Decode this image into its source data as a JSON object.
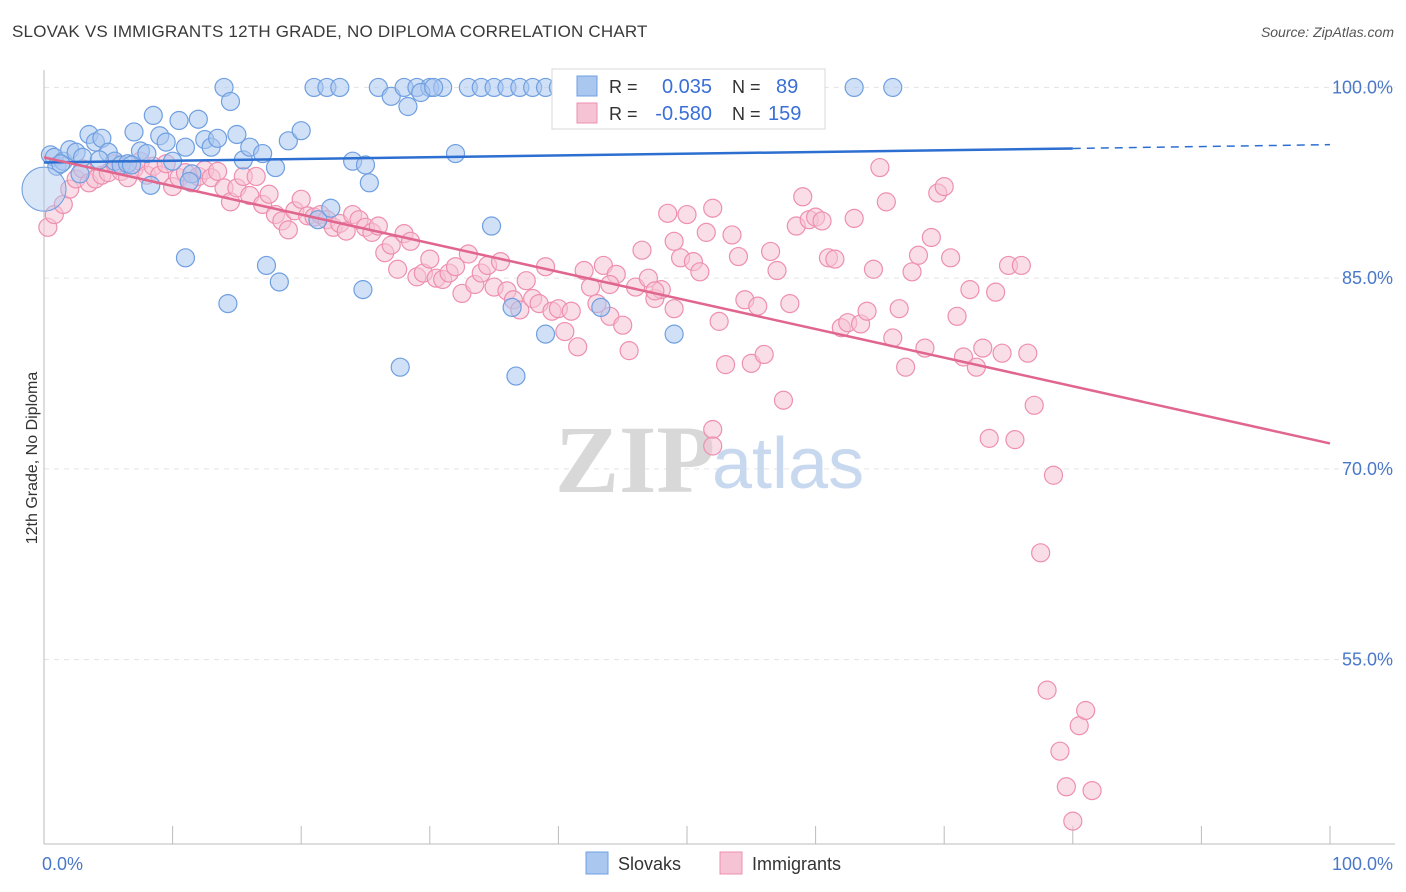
{
  "title": "SLOVAK VS IMMIGRANTS 12TH GRADE, NO DIPLOMA CORRELATION CHART",
  "source": "Source: ZipAtlas.com",
  "watermark": {
    "zip": "ZIP",
    "atlas": "atlas"
  },
  "colors": {
    "slovaks": "#6f9fe0",
    "slovaks_fill": "#aac7f0",
    "slovaks_line": "#2d6fd0",
    "immigrants": "#ee8fb0",
    "immigrants_fill": "#f6c3d4",
    "immigrants_line": "#e0668e",
    "axis_label": "#4a78c8",
    "grid": "#e3e3e3"
  },
  "legend": {
    "r_label": "R =",
    "n_label": "N =",
    "rows": [
      {
        "r": "0.035",
        "n": "89"
      },
      {
        "r": "-0.580",
        "n": "159"
      }
    ]
  },
  "chart_data": {
    "type": "scatter",
    "title": "SLOVAK VS IMMIGRANTS 12TH GRADE, NO DIPLOMA CORRELATION CHART",
    "xlabel": "",
    "ylabel": "12th Grade, No Diploma",
    "xlim": [
      0,
      100
    ],
    "ylim": [
      40.5,
      102
    ],
    "x_tick_labels": [
      "0.0%",
      "100.0%"
    ],
    "y_ticks": [
      100,
      85,
      70,
      55
    ],
    "y_tick_labels": [
      "100.0%",
      "85.0%",
      "70.0%",
      "55.0%"
    ],
    "grid": true,
    "legend_position": "top",
    "series": [
      {
        "name": "Slovaks",
        "trend": {
          "x": [
            0,
            80
          ],
          "y": [
            94.1,
            95.2
          ],
          "dashed_to": [
            100,
            95.5
          ]
        },
        "points": [
          [
            0.5,
            94.7
          ],
          [
            0.8,
            94.5
          ],
          [
            1.0,
            93.8
          ],
          [
            1.5,
            94.2
          ],
          [
            2.0,
            95.1
          ],
          [
            2.5,
            94.9
          ],
          [
            3.0,
            94.5
          ],
          [
            3.5,
            96.3
          ],
          [
            4.0,
            95.7
          ],
          [
            4.5,
            96.0
          ],
          [
            5.0,
            94.9
          ],
          [
            5.5,
            94.2
          ],
          [
            6.0,
            93.9
          ],
          [
            6.5,
            94.0
          ],
          [
            7.0,
            96.5
          ],
          [
            7.5,
            95.0
          ],
          [
            8.0,
            94.8
          ],
          [
            8.5,
            97.8
          ],
          [
            9.0,
            96.2
          ],
          [
            9.5,
            95.7
          ],
          [
            10.0,
            94.2
          ],
          [
            10.5,
            97.4
          ],
          [
            11.0,
            95.3
          ],
          [
            11.5,
            93.2
          ],
          [
            12.0,
            97.5
          ],
          [
            12.5,
            95.9
          ],
          [
            13.0,
            95.3
          ],
          [
            13.5,
            96.0
          ],
          [
            14.0,
            100
          ],
          [
            14.5,
            98.9
          ],
          [
            15.0,
            96.3
          ],
          [
            15.5,
            94.3
          ],
          [
            16.0,
            95.3
          ],
          [
            17.0,
            94.8
          ],
          [
            18.0,
            93.7
          ],
          [
            19.0,
            95.8
          ],
          [
            20.0,
            96.6
          ],
          [
            21.0,
            100
          ],
          [
            22.0,
            100
          ],
          [
            23.0,
            100
          ],
          [
            24.0,
            94.2
          ],
          [
            25.0,
            93.9
          ],
          [
            26.0,
            100
          ],
          [
            27.0,
            99.3
          ],
          [
            28.0,
            100
          ],
          [
            29.0,
            100
          ],
          [
            30.0,
            100
          ],
          [
            31.0,
            100
          ],
          [
            32.0,
            94.8
          ],
          [
            33.0,
            100
          ],
          [
            34.0,
            100
          ],
          [
            35.0,
            100
          ],
          [
            36.0,
            100
          ],
          [
            37.0,
            100
          ],
          [
            38.0,
            100
          ],
          [
            39.0,
            100
          ],
          [
            40.0,
            100
          ],
          [
            41.0,
            100
          ],
          [
            42.0,
            100
          ],
          [
            43.0,
            100
          ],
          [
            48.0,
            100
          ],
          [
            50.0,
            100
          ],
          [
            60.0,
            100
          ],
          [
            63.0,
            100
          ],
          [
            66.0,
            100
          ],
          [
            1.3,
            94.0
          ],
          [
            2.8,
            93.2
          ],
          [
            4.3,
            94.3
          ],
          [
            6.8,
            93.9
          ],
          [
            8.3,
            92.3
          ],
          [
            11.3,
            92.6
          ],
          [
            17.3,
            86.0
          ],
          [
            18.3,
            84.7
          ],
          [
            14.3,
            83.0
          ],
          [
            11.0,
            86.6
          ],
          [
            21.3,
            89.6
          ],
          [
            22.3,
            90.5
          ],
          [
            25.3,
            92.5
          ],
          [
            24.8,
            84.1
          ],
          [
            27.7,
            78.0
          ],
          [
            28.3,
            98.5
          ],
          [
            29.3,
            99.6
          ],
          [
            30.3,
            100
          ],
          [
            34.8,
            89.1
          ],
          [
            36.4,
            82.7
          ],
          [
            39.0,
            80.6
          ],
          [
            43.3,
            82.7
          ],
          [
            49.0,
            80.6
          ],
          [
            36.7,
            77.3
          ]
        ]
      },
      {
        "name": "Immigrants",
        "trend": {
          "x": [
            0,
            100
          ],
          "y": [
            94.5,
            72.0
          ]
        },
        "points": [
          [
            0.3,
            89.0
          ],
          [
            0.8,
            90.0
          ],
          [
            1.5,
            90.8
          ],
          [
            2.0,
            92.0
          ],
          [
            2.5,
            92.8
          ],
          [
            3.0,
            93.6
          ],
          [
            3.5,
            92.5
          ],
          [
            4.0,
            92.8
          ],
          [
            4.5,
            93.1
          ],
          [
            5.0,
            93.3
          ],
          [
            5.5,
            94.0
          ],
          [
            6.0,
            93.4
          ],
          [
            6.5,
            92.9
          ],
          [
            7.0,
            93.6
          ],
          [
            7.5,
            94.2
          ],
          [
            8.0,
            93.1
          ],
          [
            8.5,
            93.8
          ],
          [
            9.0,
            93.1
          ],
          [
            9.5,
            94.0
          ],
          [
            10.0,
            92.2
          ],
          [
            10.5,
            92.9
          ],
          [
            11.0,
            93.3
          ],
          [
            11.5,
            92.5
          ],
          [
            12.0,
            93.0
          ],
          [
            12.5,
            93.5
          ],
          [
            13.0,
            92.9
          ],
          [
            13.5,
            93.4
          ],
          [
            14.0,
            92.1
          ],
          [
            14.5,
            91.0
          ],
          [
            15.0,
            92.1
          ],
          [
            15.5,
            93.0
          ],
          [
            16.0,
            91.5
          ],
          [
            16.5,
            93.0
          ],
          [
            17.0,
            90.8
          ],
          [
            17.5,
            91.6
          ],
          [
            18.0,
            90.0
          ],
          [
            18.5,
            89.5
          ],
          [
            19.0,
            88.8
          ],
          [
            19.5,
            90.3
          ],
          [
            20.0,
            91.2
          ],
          [
            20.5,
            89.9
          ],
          [
            21.0,
            89.8
          ],
          [
            21.5,
            90.0
          ],
          [
            22.0,
            89.6
          ],
          [
            22.5,
            89.0
          ],
          [
            23.0,
            89.3
          ],
          [
            23.5,
            88.7
          ],
          [
            24.0,
            90.0
          ],
          [
            24.5,
            89.6
          ],
          [
            25.0,
            89.0
          ],
          [
            25.5,
            88.6
          ],
          [
            26.0,
            89.1
          ],
          [
            26.5,
            87.0
          ],
          [
            27.0,
            87.6
          ],
          [
            27.5,
            85.7
          ],
          [
            28.0,
            88.5
          ],
          [
            28.5,
            87.9
          ],
          [
            29.0,
            85.1
          ],
          [
            29.5,
            85.4
          ],
          [
            30.0,
            86.5
          ],
          [
            30.5,
            85.0
          ],
          [
            31.0,
            84.9
          ],
          [
            31.5,
            85.4
          ],
          [
            32.0,
            85.9
          ],
          [
            32.5,
            83.8
          ],
          [
            33.0,
            86.9
          ],
          [
            33.5,
            84.5
          ],
          [
            34.0,
            85.4
          ],
          [
            34.5,
            86.0
          ],
          [
            35.0,
            84.3
          ],
          [
            35.5,
            86.3
          ],
          [
            36.0,
            84.0
          ],
          [
            36.5,
            83.3
          ],
          [
            37.0,
            82.5
          ],
          [
            37.5,
            84.8
          ],
          [
            38.0,
            83.4
          ],
          [
            38.5,
            83.0
          ],
          [
            39.0,
            85.9
          ],
          [
            39.5,
            82.4
          ],
          [
            40.0,
            82.6
          ],
          [
            40.5,
            80.8
          ],
          [
            41.0,
            82.4
          ],
          [
            41.5,
            79.6
          ],
          [
            42.0,
            85.6
          ],
          [
            42.5,
            84.3
          ],
          [
            43.0,
            83.0
          ],
          [
            43.5,
            86.0
          ],
          [
            44.0,
            82.0
          ],
          [
            44.5,
            85.3
          ],
          [
            45.0,
            81.3
          ],
          [
            45.5,
            79.3
          ],
          [
            46.0,
            84.3
          ],
          [
            46.5,
            87.2
          ],
          [
            47.0,
            85.0
          ],
          [
            47.5,
            83.4
          ],
          [
            48.0,
            84.1
          ],
          [
            48.5,
            90.1
          ],
          [
            49.0,
            82.6
          ],
          [
            49.5,
            86.6
          ],
          [
            50.0,
            90.0
          ],
          [
            50.5,
            86.3
          ],
          [
            51.0,
            85.5
          ],
          [
            51.5,
            88.6
          ],
          [
            52.0,
            90.5
          ],
          [
            52.5,
            81.6
          ],
          [
            53.0,
            78.2
          ],
          [
            53.5,
            88.4
          ],
          [
            54.0,
            86.7
          ],
          [
            54.5,
            83.3
          ],
          [
            55.0,
            78.3
          ],
          [
            55.5,
            82.8
          ],
          [
            56.0,
            79.0
          ],
          [
            56.5,
            87.1
          ],
          [
            57.0,
            85.6
          ],
          [
            57.5,
            75.4
          ],
          [
            58.0,
            83.0
          ],
          [
            58.5,
            89.1
          ],
          [
            59.0,
            91.4
          ],
          [
            59.5,
            89.6
          ],
          [
            60.0,
            89.8
          ],
          [
            60.5,
            89.5
          ],
          [
            61.0,
            86.6
          ],
          [
            61.5,
            86.5
          ],
          [
            62.0,
            81.1
          ],
          [
            62.5,
            81.5
          ],
          [
            63.0,
            89.7
          ],
          [
            63.5,
            81.4
          ],
          [
            64.0,
            82.4
          ],
          [
            64.5,
            85.7
          ],
          [
            65.0,
            93.7
          ],
          [
            65.5,
            91.0
          ],
          [
            66.0,
            80.3
          ],
          [
            66.5,
            82.6
          ],
          [
            67.0,
            78.0
          ],
          [
            67.5,
            85.5
          ],
          [
            68.0,
            86.8
          ],
          [
            68.5,
            79.5
          ],
          [
            69.0,
            88.2
          ],
          [
            69.5,
            91.7
          ],
          [
            70.0,
            92.2
          ],
          [
            70.5,
            86.6
          ],
          [
            71.0,
            82.0
          ],
          [
            71.5,
            78.8
          ],
          [
            72.0,
            84.1
          ],
          [
            72.5,
            78.0
          ],
          [
            73.0,
            79.5
          ],
          [
            73.5,
            72.4
          ],
          [
            74.0,
            83.9
          ],
          [
            74.5,
            79.1
          ],
          [
            75.0,
            86.0
          ],
          [
            75.5,
            72.3
          ],
          [
            76.0,
            86.0
          ],
          [
            76.5,
            79.1
          ],
          [
            77.0,
            75.0
          ],
          [
            77.5,
            63.4
          ],
          [
            78.0,
            52.6
          ],
          [
            78.5,
            69.5
          ],
          [
            79.0,
            47.8
          ],
          [
            79.5,
            45.0
          ],
          [
            80.0,
            42.3
          ],
          [
            80.5,
            49.8
          ],
          [
            81.0,
            51.0
          ],
          [
            81.5,
            44.7
          ],
          [
            52.0,
            73.1
          ],
          [
            49.0,
            87.9
          ],
          [
            44.0,
            84.5
          ],
          [
            47.5,
            84.0
          ],
          [
            52.0,
            71.8
          ]
        ]
      }
    ]
  },
  "bottom_legend": [
    "Slovaks",
    "Immigrants"
  ]
}
